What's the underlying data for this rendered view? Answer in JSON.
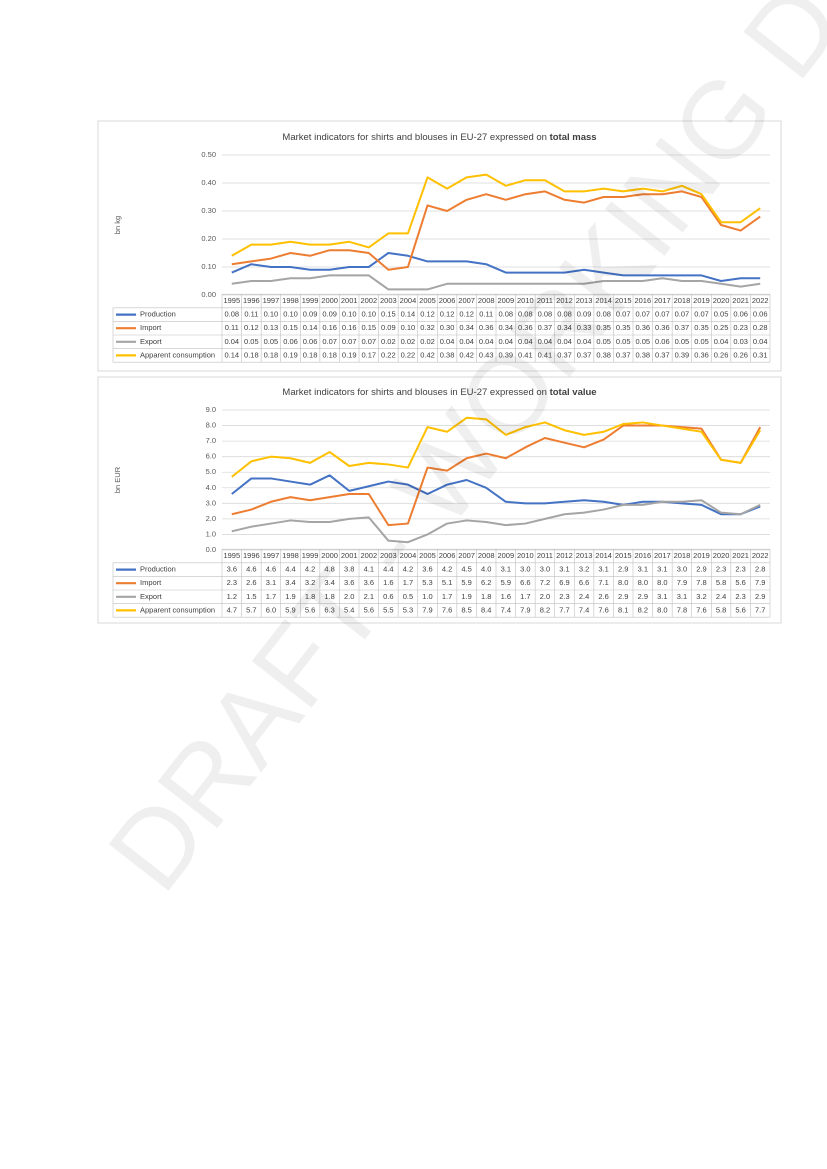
{
  "watermark": "DRAFT - WORKING DOCUMENT",
  "chart_data": [
    {
      "type": "line",
      "title": "Market indicators for shirts and blouses  in EU-27 expressed on",
      "title_emphasis": "total mass",
      "y_label": "bn kg",
      "categories": [
        "1995",
        "1996",
        "1997",
        "1998",
        "1999",
        "2000",
        "2001",
        "2002",
        "2003",
        "2004",
        "2005",
        "2006",
        "2007",
        "2008",
        "2009",
        "2010",
        "2011",
        "2012",
        "2013",
        "2014",
        "2015",
        "2016",
        "2017",
        "2018",
        "2019",
        "2020",
        "2021",
        "2022"
      ],
      "ylim": [
        0,
        0.5
      ],
      "yticks": [
        {
          "value": 0,
          "label": "0.00"
        },
        {
          "value": 0.1,
          "label": "0.10"
        },
        {
          "value": 0.2,
          "label": "0.20"
        },
        {
          "value": 0.3,
          "label": "0.30"
        },
        {
          "value": 0.4,
          "label": "0.40"
        },
        {
          "value": 0.5,
          "label": "0.50"
        }
      ],
      "grid": true,
      "series": [
        {
          "name": "Production",
          "color": "#4472c4",
          "values": [
            0.08,
            0.11,
            0.1,
            0.1,
            0.09,
            0.09,
            0.1,
            0.1,
            0.15,
            0.14,
            0.12,
            0.12,
            0.12,
            0.11,
            0.08,
            0.08,
            0.08,
            0.08,
            0.09,
            0.08,
            0.07,
            0.07,
            0.07,
            0.07,
            0.07,
            0.05,
            0.06,
            0.06
          ],
          "value_labels": [
            "0.08",
            "0.11",
            "0.10",
            "0.10",
            "0.09",
            "0.09",
            "0.10",
            "0.10",
            "0.15",
            "0.14",
            "0.12",
            "0.12",
            "0.12",
            "0.11",
            "0.08",
            "0.08",
            "0.08",
            "0.08",
            "0.09",
            "0.08",
            "0.07",
            "0.07",
            "0.07",
            "0.07",
            "0.07",
            "0.05",
            "0.06",
            "0.06"
          ]
        },
        {
          "name": "Import",
          "color": "#ed7d31",
          "values": [
            0.11,
            0.12,
            0.13,
            0.15,
            0.14,
            0.16,
            0.16,
            0.15,
            0.09,
            0.1,
            0.32,
            0.3,
            0.34,
            0.36,
            0.34,
            0.36,
            0.37,
            0.34,
            0.33,
            0.35,
            0.35,
            0.36,
            0.36,
            0.37,
            0.35,
            0.25,
            0.23,
            0.28
          ],
          "value_labels": [
            "0.11",
            "0.12",
            "0.13",
            "0.15",
            "0.14",
            "0.16",
            "0.16",
            "0.15",
            "0.09",
            "0.10",
            "0.32",
            "0.30",
            "0.34",
            "0.36",
            "0.34",
            "0.36",
            "0.37",
            "0.34",
            "0.33",
            "0.35",
            "0.35",
            "0.36",
            "0.36",
            "0.37",
            "0.35",
            "0.25",
            "0.23",
            "0.28"
          ]
        },
        {
          "name": "Export",
          "color": "#a5a5a5",
          "values": [
            0.04,
            0.05,
            0.05,
            0.06,
            0.06,
            0.07,
            0.07,
            0.07,
            0.02,
            0.02,
            0.02,
            0.04,
            0.04,
            0.04,
            0.04,
            0.04,
            0.04,
            0.04,
            0.04,
            0.05,
            0.05,
            0.05,
            0.06,
            0.05,
            0.05,
            0.04,
            0.03,
            0.04
          ],
          "value_labels": [
            "0.04",
            "0.05",
            "0.05",
            "0.06",
            "0.06",
            "0.07",
            "0.07",
            "0.07",
            "0.02",
            "0.02",
            "0.02",
            "0.04",
            "0.04",
            "0.04",
            "0.04",
            "0.04",
            "0.04",
            "0.04",
            "0.04",
            "0.05",
            "0.05",
            "0.05",
            "0.06",
            "0.05",
            "0.05",
            "0.04",
            "0.03",
            "0.04"
          ]
        },
        {
          "name": "Apparent consumption",
          "color": "#ffc000",
          "values": [
            0.14,
            0.18,
            0.18,
            0.19,
            0.18,
            0.18,
            0.19,
            0.17,
            0.22,
            0.22,
            0.42,
            0.38,
            0.42,
            0.43,
            0.39,
            0.41,
            0.41,
            0.37,
            0.37,
            0.38,
            0.37,
            0.38,
            0.37,
            0.39,
            0.36,
            0.26,
            0.26,
            0.31
          ],
          "value_labels": [
            "0.14",
            "0.18",
            "0.18",
            "0.19",
            "0.18",
            "0.18",
            "0.19",
            "0.17",
            "0.22",
            "0.22",
            "0.42",
            "0.38",
            "0.42",
            "0.43",
            "0.39",
            "0.41",
            "0.41",
            "0.37",
            "0.37",
            "0.38",
            "0.37",
            "0.38",
            "0.37",
            "0.39",
            "0.36",
            "0.26",
            "0.26",
            "0.31"
          ]
        }
      ]
    },
    {
      "type": "line",
      "title": "Market indicators for shirts and blouses in EU-27 expressed on",
      "title_emphasis": "total value",
      "y_label": "bn EUR",
      "categories": [
        "1995",
        "1996",
        "1997",
        "1998",
        "1999",
        "2000",
        "2001",
        "2002",
        "2003",
        "2004",
        "2005",
        "2006",
        "2007",
        "2008",
        "2009",
        "2010",
        "2011",
        "2012",
        "2013",
        "2014",
        "2015",
        "2016",
        "2017",
        "2018",
        "2019",
        "2020",
        "2021",
        "2022"
      ],
      "ylim": [
        0,
        9
      ],
      "yticks": [
        {
          "value": 0,
          "label": "0.0"
        },
        {
          "value": 1,
          "label": "1.0"
        },
        {
          "value": 2,
          "label": "2.0"
        },
        {
          "value": 3,
          "label": "3.0"
        },
        {
          "value": 4,
          "label": "4.0"
        },
        {
          "value": 5,
          "label": "5.0"
        },
        {
          "value": 6,
          "label": "6.0"
        },
        {
          "value": 7,
          "label": "7.0"
        },
        {
          "value": 8,
          "label": "8.0"
        },
        {
          "value": 9,
          "label": "9.0"
        }
      ],
      "grid": true,
      "series": [
        {
          "name": "Production",
          "color": "#4472c4",
          "values": [
            3.6,
            4.6,
            4.6,
            4.4,
            4.2,
            4.8,
            3.8,
            4.1,
            4.4,
            4.2,
            3.6,
            4.2,
            4.5,
            4,
            3.1,
            3,
            3,
            3.1,
            3.2,
            3.1,
            2.9,
            3.1,
            3.1,
            3,
            2.9,
            2.3,
            2.3,
            2.8
          ],
          "value_labels": [
            "3.6",
            "4.6",
            "4.6",
            "4.4",
            "4.2",
            "4.8",
            "3.8",
            "4.1",
            "4.4",
            "4.2",
            "3.6",
            "4.2",
            "4.5",
            "4.0",
            "3.1",
            "3.0",
            "3.0",
            "3.1",
            "3.2",
            "3.1",
            "2.9",
            "3.1",
            "3.1",
            "3.0",
            "2.9",
            "2.3",
            "2.3",
            "2.8"
          ]
        },
        {
          "name": "Import",
          "color": "#ed7d31",
          "values": [
            2.3,
            2.6,
            3.1,
            3.4,
            3.2,
            3.4,
            3.6,
            3.6,
            1.6,
            1.7,
            5.3,
            5.1,
            5.9,
            6.2,
            5.9,
            6.6,
            7.2,
            6.9,
            6.6,
            7.1,
            8,
            8,
            8,
            7.9,
            7.8,
            5.8,
            5.6,
            7.9
          ],
          "value_labels": [
            "2.3",
            "2.6",
            "3.1",
            "3.4",
            "3.2",
            "3.4",
            "3.6",
            "3.6",
            "1.6",
            "1.7",
            "5.3",
            "5.1",
            "5.9",
            "6.2",
            "5.9",
            "6.6",
            "7.2",
            "6.9",
            "6.6",
            "7.1",
            "8.0",
            "8.0",
            "8.0",
            "7.9",
            "7.8",
            "5.8",
            "5.6",
            "7.9"
          ]
        },
        {
          "name": "Export",
          "color": "#a5a5a5",
          "values": [
            1.2,
            1.5,
            1.7,
            1.9,
            1.8,
            1.8,
            2,
            2.1,
            0.6,
            0.5,
            1,
            1.7,
            1.9,
            1.8,
            1.6,
            1.7,
            2,
            2.3,
            2.4,
            2.6,
            2.9,
            2.9,
            3.1,
            3.1,
            3.2,
            2.4,
            2.3,
            2.9
          ],
          "value_labels": [
            "1.2",
            "1.5",
            "1.7",
            "1.9",
            "1.8",
            "1.8",
            "2.0",
            "2.1",
            "0.6",
            "0.5",
            "1.0",
            "1.7",
            "1.9",
            "1.8",
            "1.6",
            "1.7",
            "2.0",
            "2.3",
            "2.4",
            "2.6",
            "2.9",
            "2.9",
            "3.1",
            "3.1",
            "3.2",
            "2.4",
            "2.3",
            "2.9"
          ]
        },
        {
          "name": "Apparent consumption",
          "color": "#ffc000",
          "values": [
            4.7,
            5.7,
            6,
            5.9,
            5.6,
            6.3,
            5.4,
            5.6,
            5.5,
            5.3,
            7.9,
            7.6,
            8.5,
            8.4,
            7.4,
            7.9,
            8.2,
            7.7,
            7.4,
            7.6,
            8.1,
            8.2,
            8,
            7.8,
            7.6,
            5.8,
            5.6,
            7.7
          ],
          "value_labels": [
            "4.7",
            "5.7",
            "6.0",
            "5.9",
            "5.6",
            "6.3",
            "5.4",
            "5.6",
            "5.5",
            "5.3",
            "7.9",
            "7.6",
            "8.5",
            "8.4",
            "7.4",
            "7.9",
            "8.2",
            "7.7",
            "7.4",
            "7.6",
            "8.1",
            "8.2",
            "8.0",
            "7.8",
            "7.6",
            "5.8",
            "5.6",
            "7.7"
          ]
        }
      ]
    }
  ]
}
